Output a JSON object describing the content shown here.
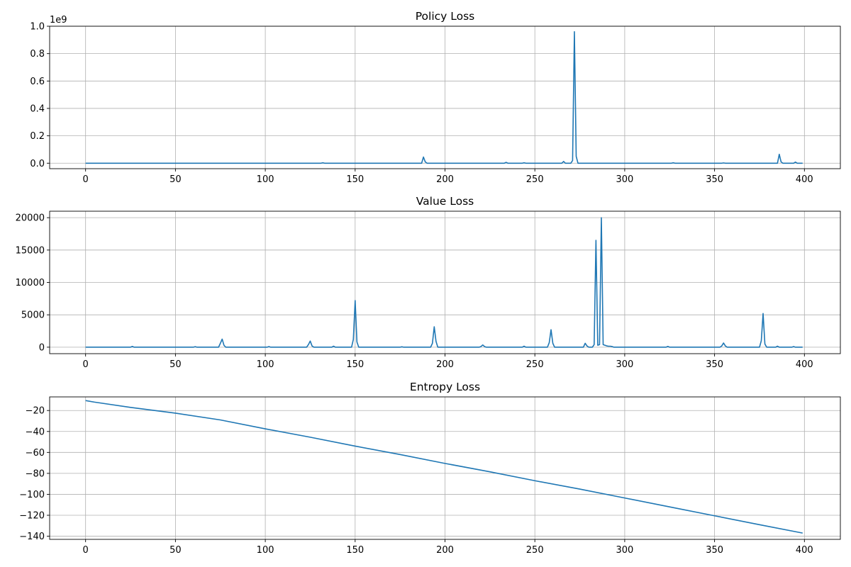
{
  "chart_data": [
    {
      "type": "line",
      "title": "Policy Loss",
      "xlabel": "",
      "ylabel": "",
      "y_offset_label": "1e9",
      "xlim": [
        -20,
        420
      ],
      "ylim": [
        -0.04,
        1.0
      ],
      "xticks": [
        0,
        50,
        100,
        150,
        200,
        250,
        300,
        350,
        400
      ],
      "yticks": [
        0.0,
        0.2,
        0.4,
        0.6,
        0.8,
        1.0
      ],
      "yticks_text": [
        "0.0",
        "0.2",
        "0.4",
        "0.6",
        "0.8",
        "1.0"
      ],
      "grid": true,
      "color": "#1f77b4",
      "x_range": [
        0,
        399
      ],
      "baseline": 0,
      "spikes": [
        [
          132,
          0.003
        ],
        [
          188,
          0.045
        ],
        [
          189,
          0.01
        ],
        [
          234,
          0.006
        ],
        [
          244,
          0.003
        ],
        [
          266,
          0.013
        ],
        [
          271,
          0.02
        ],
        [
          272,
          0.96
        ],
        [
          273,
          0.05
        ],
        [
          327,
          0.003
        ],
        [
          355,
          0.002
        ],
        [
          386,
          0.065
        ],
        [
          387,
          0.01
        ],
        [
          395,
          0.008
        ]
      ]
    },
    {
      "type": "line",
      "title": "Value Loss",
      "xlabel": "",
      "ylabel": "",
      "xlim": [
        -20,
        420
      ],
      "ylim": [
        -1000,
        21000
      ],
      "xticks": [
        0,
        50,
        100,
        150,
        200,
        250,
        300,
        350,
        400
      ],
      "yticks": [
        0,
        5000,
        10000,
        15000,
        20000
      ],
      "yticks_text": [
        "0",
        "5000",
        "10000",
        "15000",
        "20000"
      ],
      "grid": true,
      "color": "#1f77b4",
      "x_range": [
        0,
        399
      ],
      "baseline": 0,
      "spikes": [
        [
          26,
          120
        ],
        [
          61,
          80
        ],
        [
          75,
          600
        ],
        [
          76,
          1250
        ],
        [
          77,
          300
        ],
        [
          102,
          100
        ],
        [
          124,
          400
        ],
        [
          125,
          950
        ],
        [
          126,
          200
        ],
        [
          138,
          150
        ],
        [
          149,
          1200
        ],
        [
          150,
          7200
        ],
        [
          151,
          800
        ],
        [
          176,
          60
        ],
        [
          193,
          600
        ],
        [
          194,
          3150
        ],
        [
          195,
          900
        ],
        [
          220,
          100
        ],
        [
          221,
          350
        ],
        [
          222,
          100
        ],
        [
          244,
          150
        ],
        [
          258,
          700
        ],
        [
          259,
          2700
        ],
        [
          260,
          600
        ],
        [
          278,
          600
        ],
        [
          279,
          200
        ],
        [
          283,
          400
        ],
        [
          284,
          16500
        ],
        [
          285,
          300
        ],
        [
          286,
          400
        ],
        [
          287,
          20000
        ],
        [
          288,
          400
        ],
        [
          289,
          300
        ],
        [
          290,
          200
        ],
        [
          291,
          150
        ],
        [
          292,
          150
        ],
        [
          293,
          100
        ],
        [
          324,
          120
        ],
        [
          354,
          200
        ],
        [
          355,
          650
        ],
        [
          356,
          200
        ],
        [
          376,
          1000
        ],
        [
          377,
          5200
        ],
        [
          378,
          500
        ],
        [
          385,
          150
        ],
        [
          394,
          100
        ]
      ]
    },
    {
      "type": "line",
      "title": "Entropy Loss",
      "xlabel": "",
      "ylabel": "",
      "xlim": [
        -20,
        420
      ],
      "ylim": [
        -143,
        -7
      ],
      "xticks": [
        0,
        50,
        100,
        150,
        200,
        250,
        300,
        350,
        400
      ],
      "yticks": [
        -20,
        -40,
        -60,
        -80,
        -100,
        -120,
        -140
      ],
      "yticks_text": [
        "−20",
        "−40",
        "−60",
        "−80",
        "−100",
        "−120",
        "−140"
      ],
      "grid": true,
      "color": "#1f77b4",
      "points": [
        [
          0,
          -10.5
        ],
        [
          5,
          -12
        ],
        [
          25,
          -17
        ],
        [
          50,
          -22.5
        ],
        [
          75,
          -29
        ],
        [
          100,
          -37.5
        ],
        [
          125,
          -45.5
        ],
        [
          150,
          -54
        ],
        [
          175,
          -62
        ],
        [
          200,
          -70.5
        ],
        [
          225,
          -78.5
        ],
        [
          250,
          -87
        ],
        [
          275,
          -95
        ],
        [
          300,
          -103.5
        ],
        [
          325,
          -112
        ],
        [
          350,
          -120.5
        ],
        [
          375,
          -129
        ],
        [
          399,
          -137
        ]
      ]
    }
  ]
}
